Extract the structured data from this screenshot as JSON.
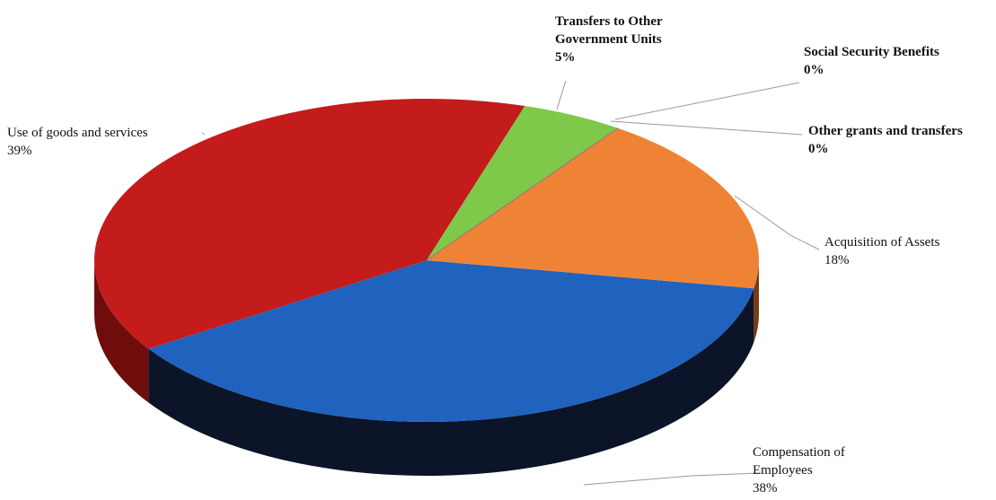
{
  "chart_data": {
    "type": "pie",
    "title": "",
    "slices": [
      {
        "label": "Compensation of Employees",
        "label_lines": [
          "Compensation of",
          "Employees"
        ],
        "value_label": "38%",
        "value": 38,
        "color": "#1f63bf",
        "dark": "#0b1428",
        "bold": false
      },
      {
        "label": "Use of goods and services",
        "label_lines": [
          "Use of goods and services"
        ],
        "value_label": "39%",
        "value": 39,
        "color": "#c41b1b",
        "dark": "#6f0d0d",
        "bold": false
      },
      {
        "label": "Transfers to Other Government Units",
        "label_lines": [
          "Transfers to Other",
          "Government Units"
        ],
        "value_label": "5%",
        "value": 5,
        "color": "#7ec84a",
        "dark": "#3c6a1f",
        "bold": true
      },
      {
        "label": "Social Security Benefits",
        "label_lines": [
          "Social Security Benefits"
        ],
        "value_label": "0%",
        "value": 0,
        "color": "#3a6fb5",
        "dark": "#1a2f55",
        "bold": true
      },
      {
        "label": "Other grants and transfers",
        "label_lines": [
          "Other grants and transfers"
        ],
        "value_label": "0%",
        "value": 0,
        "color": "#8a4fb0",
        "dark": "#3f2152",
        "bold": true
      },
      {
        "label": "Acquisition of Assets",
        "label_lines": [
          "Acquisition of Assets"
        ],
        "value_label": "18%",
        "value": 18,
        "color": "#ee8336",
        "dark": "#7a3a12",
        "bold": false
      }
    ],
    "start_angle_deg": 10,
    "direction": "clockwise",
    "style": "3d-pie",
    "legend": "none"
  }
}
